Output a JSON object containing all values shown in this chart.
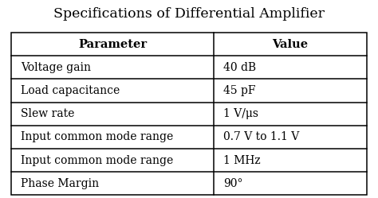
{
  "title": "Specifications of Differential Amplifier",
  "col_headers": [
    "Parameter",
    "Value"
  ],
  "rows": [
    [
      "Voltage gain",
      "40 dB"
    ],
    [
      "Load capacitance",
      "45 pF"
    ],
    [
      "Slew rate",
      "1 V/μs"
    ],
    [
      "Input common mode range",
      "0.7 V to 1.1 V"
    ],
    [
      "Input common mode range",
      "1 MHz"
    ],
    [
      "Phase Margin",
      "90°"
    ]
  ],
  "title_fontsize": 12.5,
  "header_fontsize": 10.5,
  "cell_fontsize": 10,
  "bg_color": "#ffffff",
  "line_color": "#000000",
  "title_font": "DejaVu Serif",
  "cell_font": "DejaVu Serif",
  "fig_width": 4.74,
  "fig_height": 2.49,
  "dpi": 100
}
